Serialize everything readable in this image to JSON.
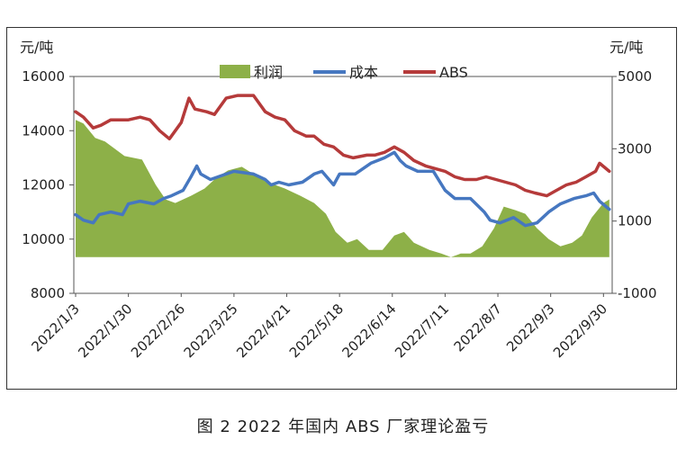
{
  "caption": "图 2  2022 年国内 ABS 厂家理论盈亏",
  "chart_data": {
    "type": "line",
    "left_unit": "元/吨",
    "right_unit": "元/吨",
    "left_ylim": [
      8000,
      16000
    ],
    "left_ticks": [
      "16000",
      "14000",
      "12000",
      "10000",
      "8000"
    ],
    "right_ylim": [
      -1000,
      5000
    ],
    "right_ticks": [
      "5000",
      "3000",
      "1000",
      "-1000"
    ],
    "grid": false,
    "legend_position": "top-center",
    "x_tick_labels": [
      "2022/1/3",
      "2022/1/30",
      "2022/2/26",
      "2022/3/25",
      "2022/4/21",
      "2022/5/18",
      "2022/6/14",
      "2022/7/11",
      "2022/8/7",
      "2022/9/3",
      "2022/9/30"
    ],
    "x_tick_days": [
      2,
      29,
      56,
      83,
      110,
      137,
      164,
      191,
      218,
      245,
      272
    ],
    "series": [
      {
        "name": "利润",
        "type": "area",
        "axis": "right",
        "color": "#8db048",
        "x": [
          "2022/1/3",
          "2022/1/7",
          "2022/1/13",
          "2022/1/18",
          "2022/1/23",
          "2022/1/28",
          "2022/2/6",
          "2022/2/13",
          "2022/2/18",
          "2022/2/23",
          "2022/3/3",
          "2022/3/10",
          "2022/3/16",
          "2022/3/22",
          "2022/3/29",
          "2022/4/4",
          "2022/4/10",
          "2022/4/15",
          "2022/4/20",
          "2022/4/28",
          "2022/5/5",
          "2022/5/11",
          "2022/5/16",
          "2022/5/22",
          "2022/5/27",
          "2022/6/2",
          "2022/6/9",
          "2022/6/15",
          "2022/6/20",
          "2022/6/25",
          "2022/7/3",
          "2022/7/9",
          "2022/7/14",
          "2022/7/19",
          "2022/7/24",
          "2022/7/30",
          "2022/8/5",
          "2022/8/10",
          "2022/8/16",
          "2022/8/21",
          "2022/8/27",
          "2022/9/2",
          "2022/9/8",
          "2022/9/14",
          "2022/9/19",
          "2022/9/24",
          "2022/9/30",
          "2022/10/3"
        ],
        "values": [
          3800,
          3700,
          3300,
          3200,
          3000,
          2800,
          2700,
          2000,
          1600,
          1500,
          1700,
          1900,
          2200,
          2400,
          2500,
          2300,
          2100,
          2000,
          1900,
          1700,
          1500,
          1200,
          700,
          400,
          500,
          200,
          200,
          600,
          700,
          400,
          200,
          100,
          0,
          100,
          100,
          300,
          800,
          1400,
          1300,
          1200,
          800,
          500,
          300,
          400,
          600,
          1100,
          1500,
          1600
        ]
      },
      {
        "name": "成本",
        "type": "line",
        "axis": "left",
        "color": "#4677c0",
        "x": [
          "2022/1/3",
          "2022/1/7",
          "2022/1/12",
          "2022/1/15",
          "2022/1/21",
          "2022/1/27",
          "2022/1/30",
          "2022/2/5",
          "2022/2/12",
          "2022/2/17",
          "2022/2/21",
          "2022/2/27",
          "2022/3/3",
          "2022/3/6",
          "2022/3/8",
          "2022/3/13",
          "2022/3/21",
          "2022/3/25",
          "2022/4/4",
          "2022/4/10",
          "2022/4/13",
          "2022/4/17",
          "2022/4/22",
          "2022/4/29",
          "2022/5/3",
          "2022/5/5",
          "2022/5/9",
          "2022/5/15",
          "2022/5/18",
          "2022/5/20",
          "2022/5/26",
          "2022/6/3",
          "2022/6/10",
          "2022/6/15",
          "2022/6/18",
          "2022/6/21",
          "2022/6/27",
          "2022/7/5",
          "2022/7/11",
          "2022/7/16",
          "2022/7/24",
          "2022/7/31",
          "2022/8/3",
          "2022/8/8",
          "2022/8/15",
          "2022/8/21",
          "2022/8/27",
          "2022/9/2",
          "2022/9/8",
          "2022/9/15",
          "2022/9/21",
          "2022/9/25",
          "2022/9/28",
          "2022/10/3"
        ],
        "values": [
          10900,
          10700,
          10600,
          10900,
          11000,
          10900,
          11300,
          11400,
          11300,
          11500,
          11600,
          11800,
          12300,
          12700,
          12400,
          12200,
          12400,
          12500,
          12400,
          12200,
          12000,
          12100,
          12000,
          12100,
          12300,
          12400,
          12500,
          12000,
          12400,
          12400,
          12400,
          12800,
          13000,
          13200,
          12900,
          12700,
          12500,
          12500,
          11800,
          11500,
          11500,
          11000,
          10700,
          10600,
          10800,
          10500,
          10600,
          11000,
          11300,
          11500,
          11600,
          11700,
          11400,
          11100
        ]
      },
      {
        "name": "ABS",
        "type": "line",
        "axis": "left",
        "color": "#b53a3a",
        "x": [
          "2022/1/3",
          "2022/1/7",
          "2022/1/12",
          "2022/1/16",
          "2022/1/21",
          "2022/1/25",
          "2022/1/30",
          "2022/2/5",
          "2022/2/10",
          "2022/2/15",
          "2022/2/20",
          "2022/2/26",
          "2022/3/2",
          "2022/3/5",
          "2022/3/11",
          "2022/3/15",
          "2022/3/21",
          "2022/3/27",
          "2022/4/4",
          "2022/4/10",
          "2022/4/15",
          "2022/4/20",
          "2022/4/25",
          "2022/5/1",
          "2022/5/5",
          "2022/5/10",
          "2022/5/15",
          "2022/5/20",
          "2022/5/25",
          "2022/6/1",
          "2022/6/5",
          "2022/6/10",
          "2022/6/15",
          "2022/6/20",
          "2022/6/25",
          "2022/7/1",
          "2022/7/6",
          "2022/7/11",
          "2022/7/16",
          "2022/7/21",
          "2022/7/27",
          "2022/8/1",
          "2022/8/6",
          "2022/8/11",
          "2022/8/16",
          "2022/8/21",
          "2022/8/26",
          "2022/9/1",
          "2022/9/6",
          "2022/9/11",
          "2022/9/16",
          "2022/9/21",
          "2022/9/26",
          "2022/9/28",
          "2022/10/3"
        ],
        "values": [
          14700,
          14500,
          14100,
          14200,
          14400,
          14400,
          14400,
          14500,
          14400,
          14000,
          13700,
          14300,
          15200,
          14800,
          14700,
          14600,
          15200,
          15300,
          15300,
          14700,
          14500,
          14400,
          14000,
          13800,
          13800,
          13500,
          13400,
          13100,
          13000,
          13100,
          13100,
          13200,
          13400,
          13200,
          12900,
          12700,
          12600,
          12500,
          12300,
          12200,
          12200,
          12300,
          12200,
          12100,
          12000,
          11800,
          11700,
          11600,
          11800,
          12000,
          12100,
          12300,
          12500,
          12800,
          12500
        ]
      }
    ]
  }
}
